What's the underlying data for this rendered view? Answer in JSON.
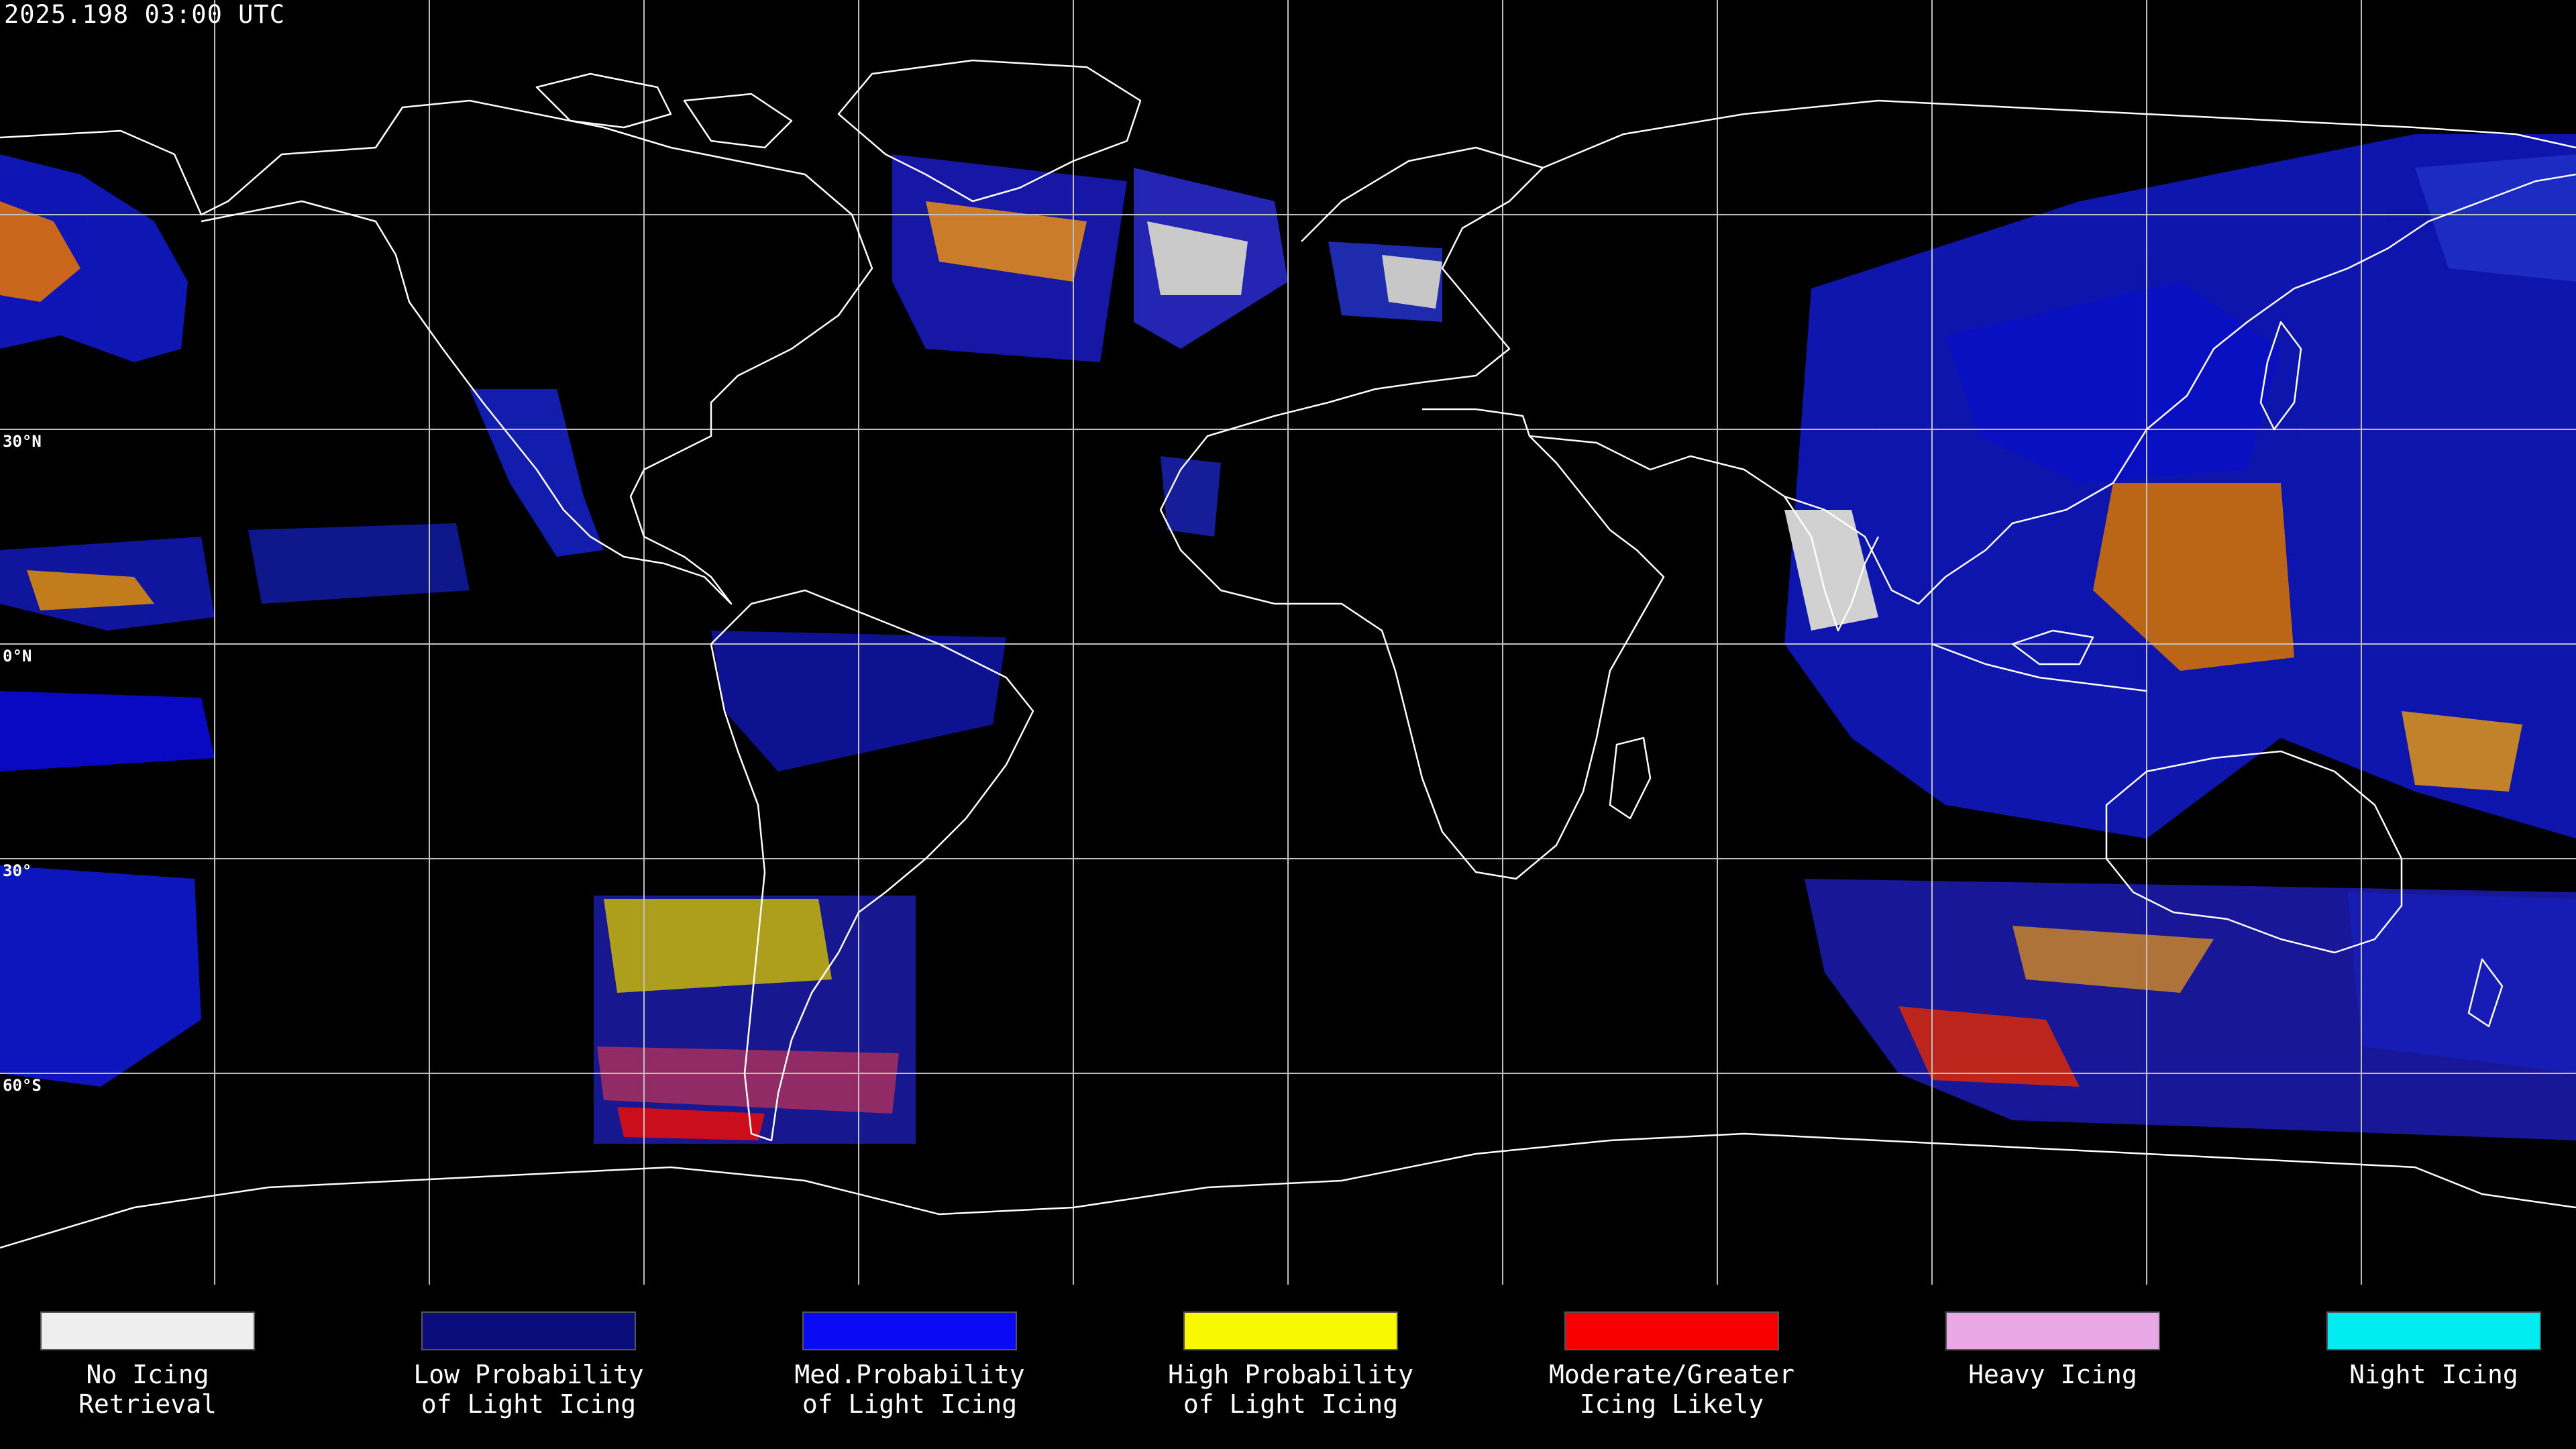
{
  "header": {
    "timestamp": "2025.198 03:00 UTC"
  },
  "map": {
    "latitude_labels": [
      "30°N",
      "0°N",
      "30°",
      "60°S"
    ],
    "colors": {
      "background": "#000000",
      "coastline": "#ffffff",
      "grid": "#bfbfbf"
    }
  },
  "legend": {
    "items": [
      {
        "label": "No Icing\nRetrieval",
        "color": "#eeeeee"
      },
      {
        "label": "Low Probability\nof Light Icing",
        "color": "#0b0c7c"
      },
      {
        "label": "Med.Probability\nof Light Icing",
        "color": "#0a0af5"
      },
      {
        "label": "High Probability\nof Light Icing",
        "color": "#f8f800"
      },
      {
        "label": "Moderate/Greater\nIcing Likely",
        "color": "#f80000"
      },
      {
        "label": "Heavy Icing",
        "color": "#e8a8e6"
      },
      {
        "label": "Night Icing",
        "color": "#00ecf0"
      }
    ]
  }
}
